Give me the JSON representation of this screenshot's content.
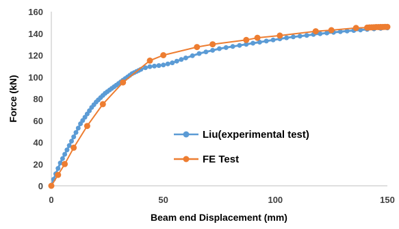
{
  "chart_data": {
    "type": "scatter",
    "xlabel": "Beam end Displacement  (mm)",
    "ylabel": "Force (kN)",
    "xlim": [
      0,
      150
    ],
    "ylim": [
      0,
      160
    ],
    "x_ticks": [
      "0",
      "50",
      "100",
      "150"
    ],
    "y_ticks": [
      "0",
      "20",
      "40",
      "60",
      "80",
      "100",
      "120",
      "140",
      "160"
    ],
    "grid": false,
    "legend_position": "lower-right",
    "series": [
      {
        "name": "Liu(experimental test)",
        "color": "#5B9BD5",
        "x": [
          0,
          1,
          2,
          3,
          4,
          5,
          6,
          7,
          8,
          9,
          10,
          11,
          12,
          13,
          14,
          15,
          16,
          17,
          18,
          19,
          20,
          21,
          22,
          23,
          24,
          25,
          26,
          27,
          28,
          29,
          30,
          31,
          32,
          33,
          34,
          35,
          36,
          37,
          38,
          39,
          40,
          42,
          44,
          46,
          48,
          50,
          52,
          54,
          56,
          58,
          60,
          63,
          66,
          69,
          72,
          75,
          78,
          81,
          84,
          87,
          90,
          93,
          96,
          99,
          102,
          105,
          108,
          111,
          114,
          117,
          120,
          123,
          126,
          129,
          132,
          135,
          138,
          141,
          144,
          147,
          150
        ],
        "y": [
          0,
          6,
          11,
          16,
          21,
          25,
          29,
          33,
          37,
          41,
          45,
          49,
          53,
          57,
          60,
          63,
          66,
          69,
          72,
          74.5,
          77,
          79,
          81,
          83,
          85,
          86.5,
          88,
          89.5,
          91,
          92.5,
          94,
          95.5,
          97,
          98.5,
          100,
          101.5,
          103,
          104,
          105,
          106,
          107,
          108.5,
          109.5,
          110,
          110.5,
          111,
          112,
          113,
          114.5,
          116,
          117.5,
          119.5,
          121.5,
          123,
          124.5,
          126,
          127,
          128,
          129,
          130,
          131,
          132,
          133,
          134,
          135,
          136,
          136.8,
          137.5,
          138.2,
          139,
          139.7,
          140.4,
          141,
          141.6,
          142.2,
          142.7,
          143.2,
          143.7,
          144.2,
          144.6,
          145
        ]
      },
      {
        "name": "FE Test",
        "color": "#ED7D31",
        "x": [
          0,
          3,
          6,
          10,
          16,
          23,
          32,
          44,
          50,
          65,
          72,
          87,
          92,
          102,
          118,
          125,
          136,
          141,
          142,
          143,
          144,
          145,
          146,
          147,
          148,
          149,
          150
        ],
        "y": [
          0,
          10,
          20,
          35,
          55,
          75,
          95,
          115,
          120,
          127.5,
          130,
          134,
          136,
          138,
          142,
          143,
          145,
          145.3,
          145.5,
          145.6,
          145.7,
          145.8,
          145.8,
          145.9,
          145.9,
          146,
          146
        ]
      }
    ]
  }
}
